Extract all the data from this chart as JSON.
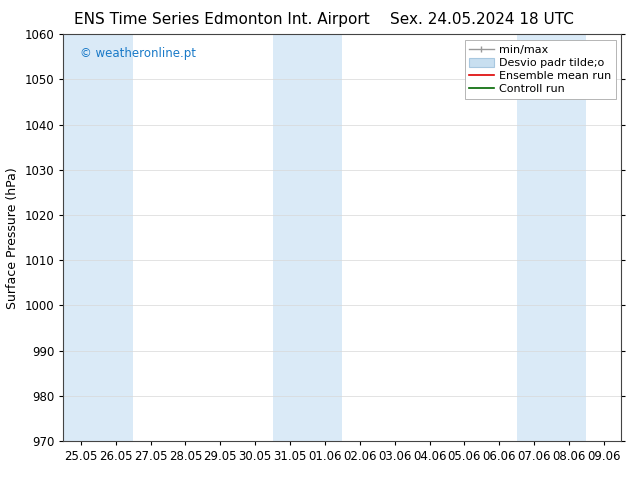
{
  "title_left": "ENS Time Series Edmonton Int. Airport",
  "title_right": "Sex. 24.05.2024 18 UTC",
  "ylabel": "Surface Pressure (hPa)",
  "ylim": [
    970,
    1060
  ],
  "yticks": [
    970,
    980,
    990,
    1000,
    1010,
    1020,
    1030,
    1040,
    1050,
    1060
  ],
  "x_tick_labels": [
    "25.05",
    "26.05",
    "27.05",
    "28.05",
    "29.05",
    "30.05",
    "31.05",
    "01.06",
    "02.06",
    "03.06",
    "04.06",
    "05.06",
    "06.06",
    "07.06",
    "08.06",
    "09.06"
  ],
  "background_color": "#ffffff",
  "plot_bg_color": "#ffffff",
  "shaded_band_color": "#daeaf7",
  "shaded_col_indices": [
    0,
    1,
    6,
    7,
    13,
    14
  ],
  "watermark_text": "© weatheronline.pt",
  "watermark_color": "#1a7ac8",
  "title_fontsize": 11,
  "axis_fontsize": 9,
  "tick_fontsize": 8.5,
  "legend_fontsize": 8
}
